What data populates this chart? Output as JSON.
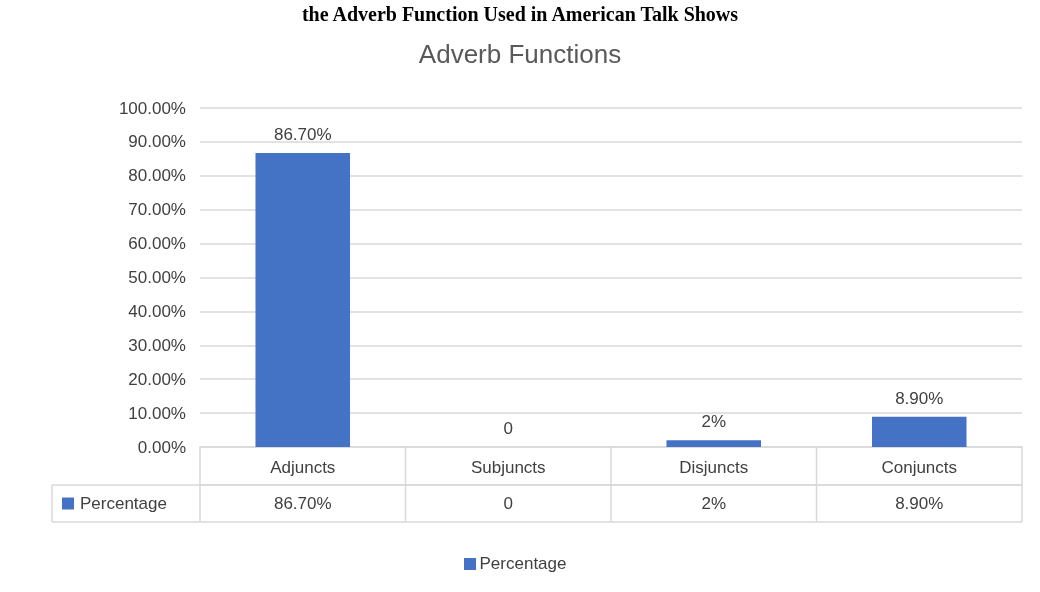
{
  "chart_data": {
    "type": "bar",
    "title": "Adverb Functions",
    "annotations": [
      "the Adverb Function Used in American Talk Shows"
    ],
    "categories": [
      "Adjuncts",
      "Subjuncts",
      "Disjuncts",
      "Conjuncts"
    ],
    "series": [
      {
        "name": "Percentage",
        "color": "#4472c4",
        "values": [
          86.7,
          0,
          2,
          8.9
        ],
        "value_labels": [
          "86.70%",
          "0",
          "2%",
          "8.90%"
        ]
      }
    ],
    "data_labels": true,
    "ylim": [
      0,
      100
    ],
    "yticks": [
      {
        "value": 0,
        "label": "0.00%"
      },
      {
        "value": 10,
        "label": "10.00%"
      },
      {
        "value": 20,
        "label": "20.00%"
      },
      {
        "value": 30,
        "label": "30.00%"
      },
      {
        "value": 40,
        "label": "40.00%"
      },
      {
        "value": 50,
        "label": "50.00%"
      },
      {
        "value": 60,
        "label": "60.00%"
      },
      {
        "value": 70,
        "label": "70.00%"
      },
      {
        "value": 80,
        "label": "80.00%"
      },
      {
        "value": 90,
        "label": "90.00%"
      },
      {
        "value": 100,
        "label": "100.00%"
      }
    ],
    "grid": "y",
    "legend": "bottom"
  }
}
